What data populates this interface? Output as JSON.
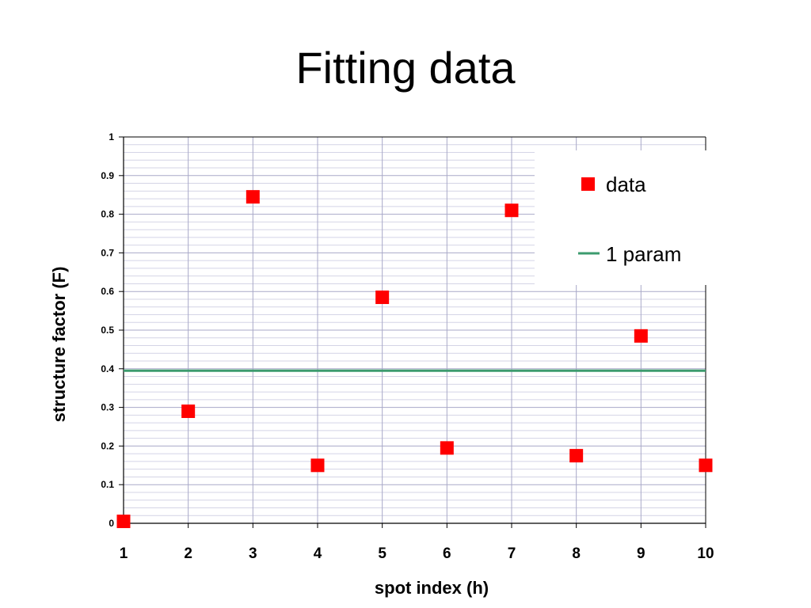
{
  "slide": {
    "title": "Fitting data"
  },
  "chart_data": {
    "type": "scatter",
    "xlabel": "spot index (h)",
    "ylabel": "structure factor (F)",
    "xlim": [
      1,
      10
    ],
    "ylim": [
      0,
      1
    ],
    "x_ticks": [
      "1",
      "2",
      "3",
      "4",
      "5",
      "6",
      "7",
      "8",
      "9",
      "10"
    ],
    "y_ticks": [
      "0",
      "0.1",
      "0.2",
      "0.3",
      "0.4",
      "0.5",
      "0.6",
      "0.7",
      "0.8",
      "0.9",
      "1"
    ],
    "grid": true,
    "legend_position": "top-right",
    "series": [
      {
        "name": "data",
        "kind": "scatter",
        "marker": "square",
        "color": "#ff0000",
        "x": [
          1,
          2,
          3,
          4,
          5,
          6,
          7,
          8,
          9,
          10
        ],
        "y": [
          0.005,
          0.29,
          0.845,
          0.15,
          0.585,
          0.195,
          0.81,
          0.175,
          0.485,
          0.15
        ]
      },
      {
        "name": "1 param",
        "kind": "line",
        "color": "#3c9b6e",
        "x": [
          1,
          10
        ],
        "y": [
          0.395,
          0.395
        ]
      }
    ]
  }
}
